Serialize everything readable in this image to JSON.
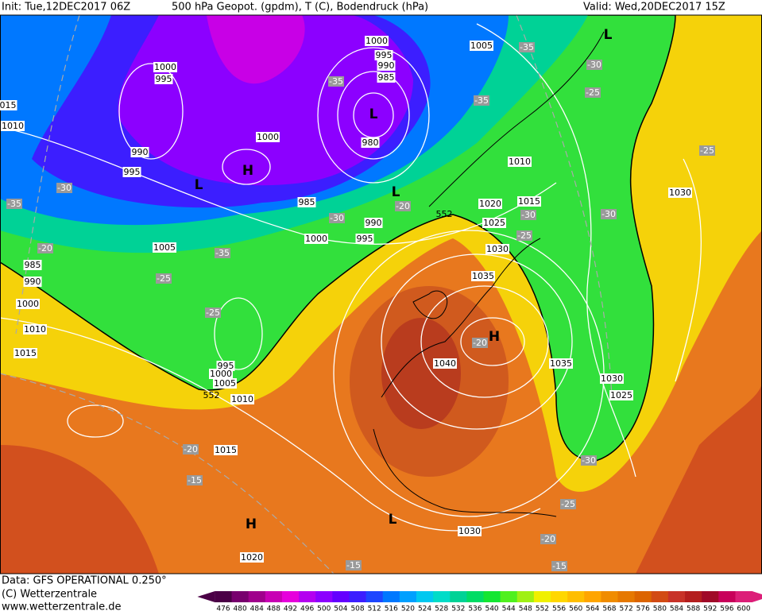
{
  "header": {
    "init": "Init: Tue,12DEC2017 06Z",
    "title": "500 hPa Geopot. (gpdm), T (C), Bodendruck (hPa)",
    "valid": "Valid: Wed,20DEC2017 15Z"
  },
  "map": {
    "pressure_labels": [
      "1000",
      "995",
      "990",
      "985",
      "1005",
      "1000",
      "995",
      "015",
      "1010",
      "1000",
      "980",
      "990",
      "995",
      "985",
      "990",
      "995",
      "1000",
      "1005",
      "1010",
      "1020",
      "1015",
      "1025",
      "1030",
      "1035",
      "985",
      "990",
      "1000",
      "1010",
      "1015",
      "995",
      "1000",
      "1005",
      "1010",
      "1040",
      "1035",
      "1030",
      "1025",
      "1015",
      "1030",
      "1020",
      "1030"
    ],
    "temperature_labels": [
      "-35",
      "-30",
      "-25",
      "-35",
      "-35",
      "-30",
      "-35",
      "-20",
      "-35",
      "-25",
      "-25",
      "-20",
      "-30",
      "-30",
      "-25",
      "-30",
      "-25",
      "-20",
      "-20",
      "-15",
      "-30",
      "-25",
      "-20",
      "-15",
      "-15"
    ],
    "pressure_centers": [
      "L",
      "L",
      "H",
      "L",
      "L",
      "H",
      "H",
      "L"
    ],
    "geopotential_labels": [
      "552",
      "552"
    ]
  },
  "footer": {
    "data": "Data: GFS OPERATIONAL 0.250°",
    "copyright": "(C) Wetterzentrale",
    "url": "www.wetterzentrale.de"
  },
  "colorbar": {
    "values": [
      476,
      480,
      484,
      488,
      492,
      496,
      500,
      504,
      508,
      512,
      516,
      520,
      524,
      528,
      532,
      536,
      540,
      544,
      548,
      552,
      556,
      560,
      564,
      568,
      572,
      576,
      580,
      584,
      588,
      592,
      596,
      600
    ],
    "colors": [
      "#4b0046",
      "#78006e",
      "#a0008c",
      "#c800b4",
      "#e600dc",
      "#b400f0",
      "#8c00ff",
      "#6400ff",
      "#3c1eff",
      "#1e46ff",
      "#0078ff",
      "#00a0ff",
      "#00c8f0",
      "#00dcc8",
      "#00d296",
      "#00dc64",
      "#14e632",
      "#50f01e",
      "#a0f014",
      "#f0f000",
      "#ffd700",
      "#ffbe00",
      "#ffa500",
      "#f08c00",
      "#e67800",
      "#dc6400",
      "#d24b14",
      "#c83228",
      "#b41e1e",
      "#a00a28",
      "#c8005a",
      "#dc1e78"
    ]
  }
}
